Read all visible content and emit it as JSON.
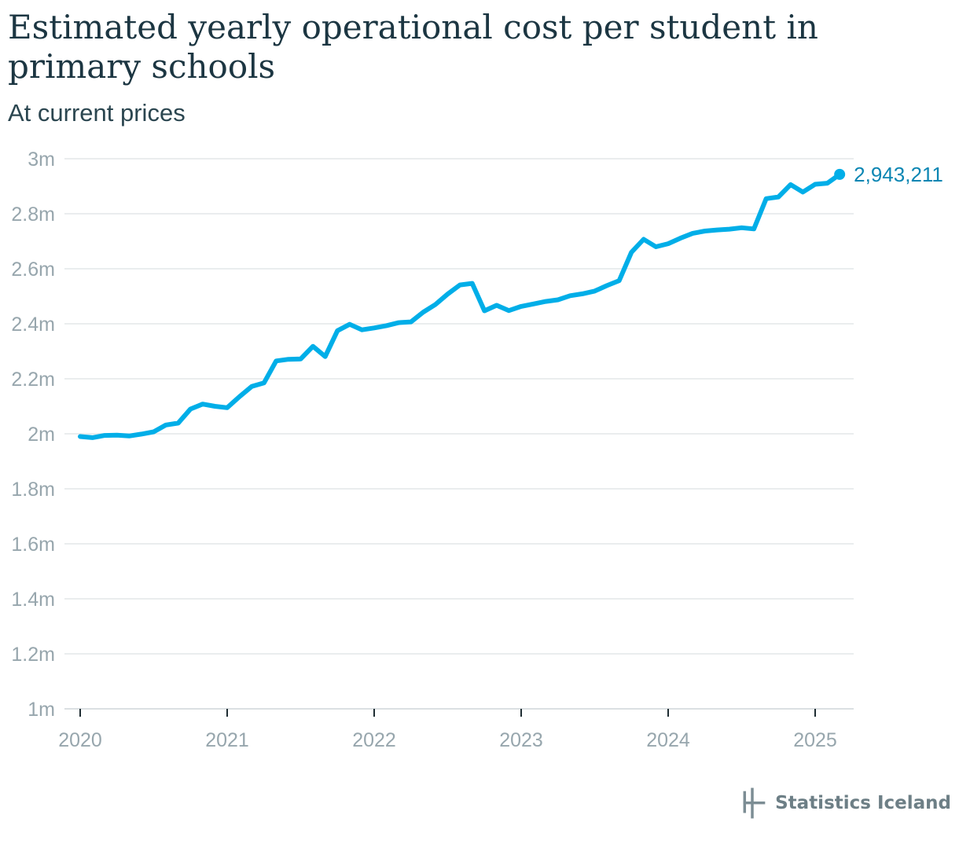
{
  "header": {
    "title": "Estimated yearly operational cost per student in primary schools",
    "subtitle": "At current prices"
  },
  "footer": {
    "source": "Statistics Iceland",
    "logo_icon": "statistics-iceland-logo-icon"
  },
  "chart_data": {
    "type": "line",
    "title": "Estimated yearly operational cost per student in primary schools",
    "subtitle": "At current prices",
    "xlabel": "",
    "ylabel": "",
    "x_ticks": [
      "2020",
      "2021",
      "2022",
      "2023",
      "2024",
      "2025"
    ],
    "y_ticks": [
      "1m",
      "1.2m",
      "1.4m",
      "1.6m",
      "1.8m",
      "2m",
      "2.2m",
      "2.4m",
      "2.6m",
      "2.8m",
      "3m"
    ],
    "ylim": [
      1000000,
      3000000
    ],
    "xlim": [
      "2020-01",
      "2025-04"
    ],
    "grid": true,
    "line_color": "#00aee8",
    "end_label": "2,943,211",
    "end_label_color": "#0b86b3",
    "series": [
      {
        "x": [
          "2020-01",
          "2020-02",
          "2020-03",
          "2020-04",
          "2020-05",
          "2020-06",
          "2020-07",
          "2020-08",
          "2020-09",
          "2020-10",
          "2020-11",
          "2020-12",
          "2021-01",
          "2021-02",
          "2021-03",
          "2021-04",
          "2021-05",
          "2021-06",
          "2021-07",
          "2021-08",
          "2021-09",
          "2021-10",
          "2021-11",
          "2021-12",
          "2022-01",
          "2022-02",
          "2022-03",
          "2022-04",
          "2022-05",
          "2022-06",
          "2022-07",
          "2022-08",
          "2022-09",
          "2022-10",
          "2022-11",
          "2022-12",
          "2023-01",
          "2023-02",
          "2023-03",
          "2023-04",
          "2023-05",
          "2023-06",
          "2023-07",
          "2023-08",
          "2023-09",
          "2023-10",
          "2023-11",
          "2023-12",
          "2024-01",
          "2024-02",
          "2024-03",
          "2024-04",
          "2024-05",
          "2024-06",
          "2024-07",
          "2024-08",
          "2024-09",
          "2024-10",
          "2024-11",
          "2024-12",
          "2025-01",
          "2025-02",
          "2025-03"
        ],
        "values": [
          1990000,
          1986000,
          1994000,
          1995000,
          1992000,
          1999000,
          2007000,
          2032000,
          2039000,
          2090000,
          2108000,
          2100000,
          2095000,
          2135000,
          2172000,
          2185000,
          2265000,
          2271000,
          2272000,
          2318000,
          2281000,
          2375000,
          2398000,
          2378000,
          2385000,
          2393000,
          2404000,
          2407000,
          2442000,
          2470000,
          2508000,
          2541000,
          2547000,
          2447000,
          2467000,
          2448000,
          2463000,
          2472000,
          2481000,
          2487000,
          2502000,
          2509000,
          2519000,
          2539000,
          2557000,
          2660000,
          2707000,
          2680000,
          2691000,
          2711000,
          2729000,
          2737000,
          2741000,
          2744000,
          2749000,
          2745000,
          2855000,
          2861000,
          2906000,
          2879000,
          2907000,
          2911000,
          2943211
        ]
      }
    ]
  }
}
